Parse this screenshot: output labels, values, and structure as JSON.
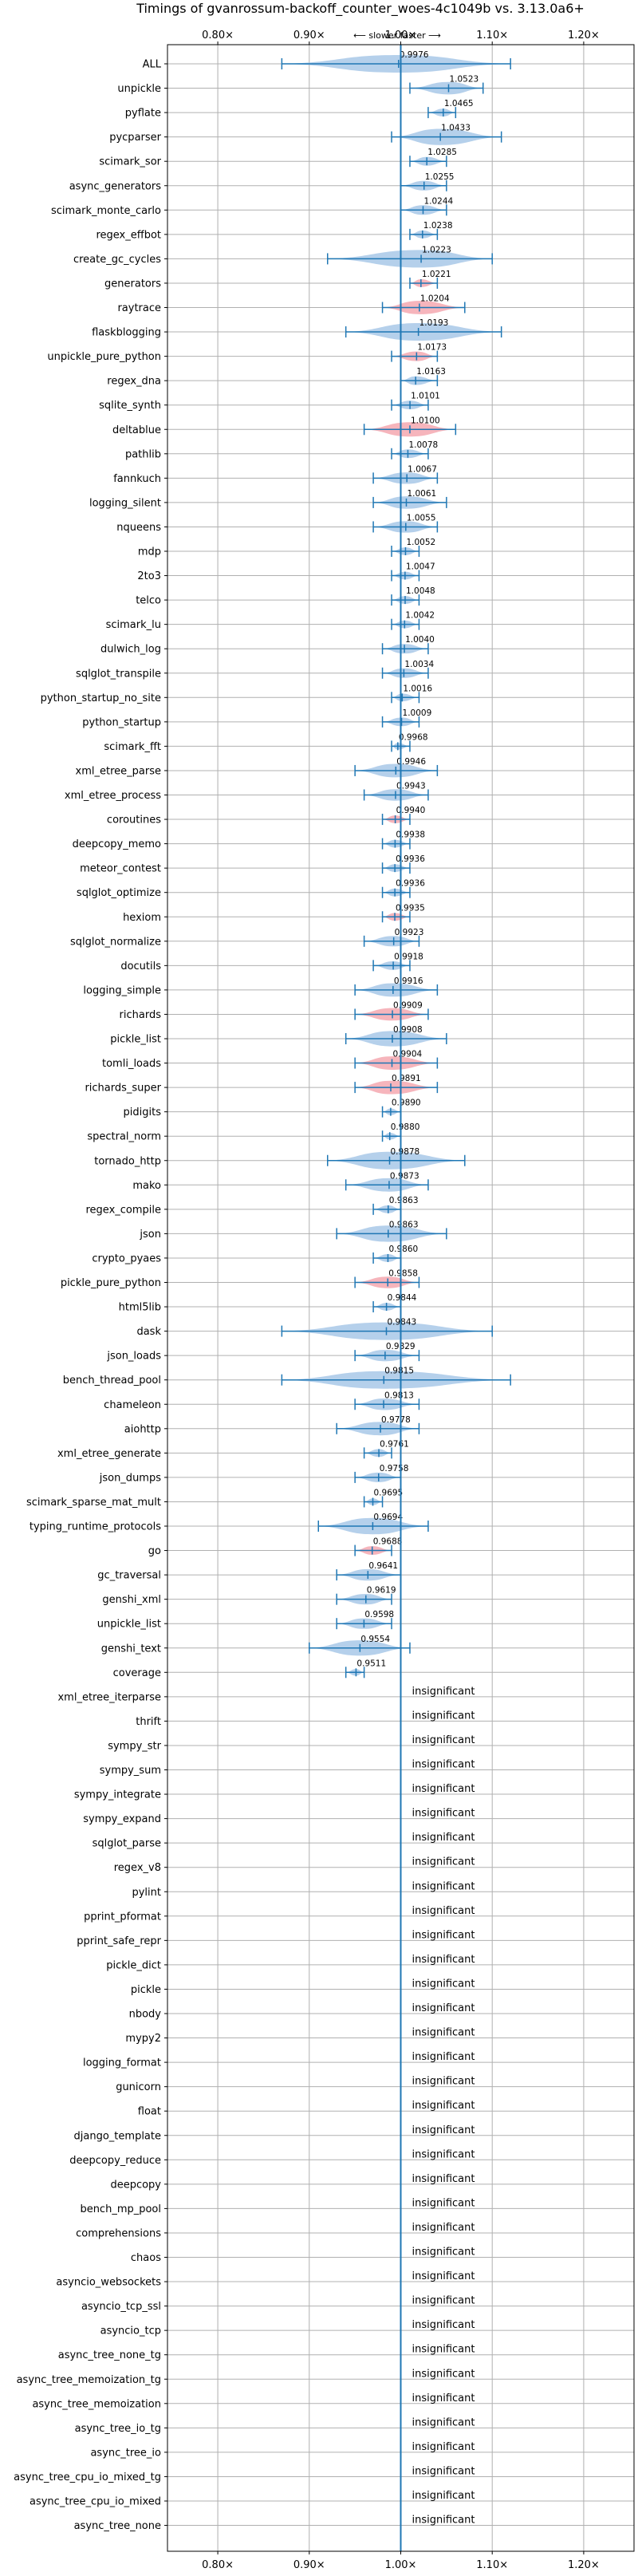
{
  "chart_data": {
    "type": "violin",
    "title": "Timings of gvanrossum-backoff_counter_woes-4c1049b vs. 3.13.0a6+",
    "subtitle": "⟵ slower    faster ⟶",
    "xlim": [
      0.745,
      1.255
    ],
    "x_ticks": [
      0.8,
      0.9,
      1.0,
      1.1,
      1.2
    ],
    "x_tick_labels": [
      "0.80×",
      "0.90×",
      "1.00×",
      "1.10×",
      "1.20×"
    ],
    "grid": true,
    "colors": {
      "faster": "#a8c8e8",
      "slower": "#f4a8b0",
      "line": "#1f77b4"
    },
    "benchmarks": [
      {
        "name": "ALL",
        "label": "0.9976",
        "value": 0.9976,
        "min": 0.87,
        "max": 1.12,
        "color": "blue"
      },
      {
        "name": "unpickle",
        "label": "1.0523",
        "value": 1.0523,
        "min": 1.01,
        "max": 1.09,
        "color": "blue"
      },
      {
        "name": "pyflate",
        "label": "1.0465",
        "value": 1.0465,
        "min": 1.03,
        "max": 1.06,
        "color": "blue"
      },
      {
        "name": "pycparser",
        "label": "1.0433",
        "value": 1.0433,
        "min": 0.99,
        "max": 1.11,
        "color": "blue"
      },
      {
        "name": "scimark_sor",
        "label": "1.0285",
        "value": 1.0285,
        "min": 1.01,
        "max": 1.05,
        "color": "blue"
      },
      {
        "name": "async_generators",
        "label": "1.0255",
        "value": 1.0255,
        "min": 1.0,
        "max": 1.05,
        "color": "blue"
      },
      {
        "name": "scimark_monte_carlo",
        "label": "1.0244",
        "value": 1.0244,
        "min": 1.0,
        "max": 1.05,
        "color": "blue"
      },
      {
        "name": "regex_effbot",
        "label": "1.0238",
        "value": 1.0238,
        "min": 1.01,
        "max": 1.04,
        "color": "blue"
      },
      {
        "name": "create_gc_cycles",
        "label": "1.0223",
        "value": 1.0223,
        "min": 0.92,
        "max": 1.1,
        "color": "blue"
      },
      {
        "name": "generators",
        "label": "1.0221",
        "value": 1.0221,
        "min": 1.01,
        "max": 1.04,
        "color": "red"
      },
      {
        "name": "raytrace",
        "label": "1.0204",
        "value": 1.0204,
        "min": 0.98,
        "max": 1.07,
        "color": "red"
      },
      {
        "name": "flaskblogging",
        "label": "1.0193",
        "value": 1.0193,
        "min": 0.94,
        "max": 1.11,
        "color": "blue"
      },
      {
        "name": "unpickle_pure_python",
        "label": "1.0173",
        "value": 1.0173,
        "min": 0.99,
        "max": 1.04,
        "color": "red"
      },
      {
        "name": "regex_dna",
        "label": "1.0163",
        "value": 1.0163,
        "min": 1.0,
        "max": 1.04,
        "color": "blue"
      },
      {
        "name": "sqlite_synth",
        "label": "1.0101",
        "value": 1.0101,
        "min": 0.99,
        "max": 1.03,
        "color": "blue"
      },
      {
        "name": "deltablue",
        "label": "1.0100",
        "value": 1.01,
        "min": 0.96,
        "max": 1.06,
        "color": "red"
      },
      {
        "name": "pathlib",
        "label": "1.0078",
        "value": 1.0078,
        "min": 0.99,
        "max": 1.03,
        "color": "blue"
      },
      {
        "name": "fannkuch",
        "label": "1.0067",
        "value": 1.0067,
        "min": 0.97,
        "max": 1.04,
        "color": "blue"
      },
      {
        "name": "logging_silent",
        "label": "1.0061",
        "value": 1.0061,
        "min": 0.97,
        "max": 1.05,
        "color": "blue"
      },
      {
        "name": "nqueens",
        "label": "1.0055",
        "value": 1.0055,
        "min": 0.97,
        "max": 1.04,
        "color": "blue"
      },
      {
        "name": "mdp",
        "label": "1.0052",
        "value": 1.0052,
        "min": 0.99,
        "max": 1.02,
        "color": "blue"
      },
      {
        "name": "2to3",
        "label": "1.0047",
        "value": 1.0047,
        "min": 0.99,
        "max": 1.02,
        "color": "blue"
      },
      {
        "name": "telco",
        "label": "1.0048",
        "value": 1.0048,
        "min": 0.99,
        "max": 1.02,
        "color": "blue"
      },
      {
        "name": "scimark_lu",
        "label": "1.0042",
        "value": 1.0042,
        "min": 0.99,
        "max": 1.02,
        "color": "blue"
      },
      {
        "name": "dulwich_log",
        "label": "1.0040",
        "value": 1.004,
        "min": 0.98,
        "max": 1.03,
        "color": "blue"
      },
      {
        "name": "sqlglot_transpile",
        "label": "1.0034",
        "value": 1.0034,
        "min": 0.98,
        "max": 1.03,
        "color": "blue"
      },
      {
        "name": "python_startup_no_site",
        "label": "1.0016",
        "value": 1.0016,
        "min": 0.99,
        "max": 1.02,
        "color": "blue"
      },
      {
        "name": "python_startup",
        "label": "1.0009",
        "value": 1.0009,
        "min": 0.98,
        "max": 1.02,
        "color": "blue"
      },
      {
        "name": "scimark_fft",
        "label": "0.9968",
        "value": 0.9968,
        "min": 0.99,
        "max": 1.01,
        "color": "blue"
      },
      {
        "name": "xml_etree_parse",
        "label": "0.9946",
        "value": 0.9946,
        "min": 0.95,
        "max": 1.04,
        "color": "blue"
      },
      {
        "name": "xml_etree_process",
        "label": "0.9943",
        "value": 0.9943,
        "min": 0.96,
        "max": 1.03,
        "color": "blue"
      },
      {
        "name": "coroutines",
        "label": "0.9940",
        "value": 0.994,
        "min": 0.98,
        "max": 1.01,
        "color": "red"
      },
      {
        "name": "deepcopy_memo",
        "label": "0.9938",
        "value": 0.9938,
        "min": 0.98,
        "max": 1.01,
        "color": "blue"
      },
      {
        "name": "meteor_contest",
        "label": "0.9936",
        "value": 0.9936,
        "min": 0.98,
        "max": 1.01,
        "color": "blue"
      },
      {
        "name": "sqlglot_optimize",
        "label": "0.9936",
        "value": 0.9936,
        "min": 0.98,
        "max": 1.01,
        "color": "blue"
      },
      {
        "name": "hexiom",
        "label": "0.9935",
        "value": 0.9935,
        "min": 0.98,
        "max": 1.01,
        "color": "red"
      },
      {
        "name": "sqlglot_normalize",
        "label": "0.9923",
        "value": 0.9923,
        "min": 0.96,
        "max": 1.02,
        "color": "blue"
      },
      {
        "name": "docutils",
        "label": "0.9918",
        "value": 0.9918,
        "min": 0.97,
        "max": 1.01,
        "color": "blue"
      },
      {
        "name": "logging_simple",
        "label": "0.9916",
        "value": 0.9916,
        "min": 0.95,
        "max": 1.04,
        "color": "blue"
      },
      {
        "name": "richards",
        "label": "0.9909",
        "value": 0.9909,
        "min": 0.95,
        "max": 1.03,
        "color": "red"
      },
      {
        "name": "pickle_list",
        "label": "0.9908",
        "value": 0.9908,
        "min": 0.94,
        "max": 1.05,
        "color": "blue"
      },
      {
        "name": "tomli_loads",
        "label": "0.9904",
        "value": 0.9904,
        "min": 0.95,
        "max": 1.04,
        "color": "red"
      },
      {
        "name": "richards_super",
        "label": "0.9891",
        "value": 0.9891,
        "min": 0.95,
        "max": 1.04,
        "color": "red"
      },
      {
        "name": "pidigits",
        "label": "0.9890",
        "value": 0.989,
        "min": 0.98,
        "max": 1.0,
        "color": "blue"
      },
      {
        "name": "spectral_norm",
        "label": "0.9880",
        "value": 0.988,
        "min": 0.98,
        "max": 1.0,
        "color": "blue"
      },
      {
        "name": "tornado_http",
        "label": "0.9878",
        "value": 0.9878,
        "min": 0.92,
        "max": 1.07,
        "color": "blue"
      },
      {
        "name": "mako",
        "label": "0.9873",
        "value": 0.9873,
        "min": 0.94,
        "max": 1.03,
        "color": "blue"
      },
      {
        "name": "regex_compile",
        "label": "0.9863",
        "value": 0.9863,
        "min": 0.97,
        "max": 1.0,
        "color": "blue"
      },
      {
        "name": "json",
        "label": "0.9863",
        "value": 0.9863,
        "min": 0.93,
        "max": 1.05,
        "color": "blue"
      },
      {
        "name": "crypto_pyaes",
        "label": "0.9860",
        "value": 0.986,
        "min": 0.97,
        "max": 1.0,
        "color": "blue"
      },
      {
        "name": "pickle_pure_python",
        "label": "0.9858",
        "value": 0.9858,
        "min": 0.95,
        "max": 1.02,
        "color": "red"
      },
      {
        "name": "html5lib",
        "label": "0.9844",
        "value": 0.9844,
        "min": 0.97,
        "max": 1.0,
        "color": "blue"
      },
      {
        "name": "dask",
        "label": "0.9843",
        "value": 0.9843,
        "min": 0.87,
        "max": 1.1,
        "color": "blue"
      },
      {
        "name": "json_loads",
        "label": "0.9829",
        "value": 0.9829,
        "min": 0.95,
        "max": 1.02,
        "color": "blue"
      },
      {
        "name": "bench_thread_pool",
        "label": "0.9815",
        "value": 0.9815,
        "min": 0.87,
        "max": 1.12,
        "color": "blue"
      },
      {
        "name": "chameleon",
        "label": "0.9813",
        "value": 0.9813,
        "min": 0.95,
        "max": 1.02,
        "color": "blue"
      },
      {
        "name": "aiohttp",
        "label": "0.9778",
        "value": 0.9778,
        "min": 0.93,
        "max": 1.02,
        "color": "blue"
      },
      {
        "name": "xml_etree_generate",
        "label": "0.9761",
        "value": 0.9761,
        "min": 0.96,
        "max": 0.99,
        "color": "blue"
      },
      {
        "name": "json_dumps",
        "label": "0.9758",
        "value": 0.9758,
        "min": 0.95,
        "max": 1.0,
        "color": "blue"
      },
      {
        "name": "scimark_sparse_mat_mult",
        "label": "0.9695",
        "value": 0.9695,
        "min": 0.96,
        "max": 0.98,
        "color": "blue"
      },
      {
        "name": "typing_runtime_protocols",
        "label": "0.9694",
        "value": 0.9694,
        "min": 0.91,
        "max": 1.03,
        "color": "blue"
      },
      {
        "name": "go",
        "label": "0.9688",
        "value": 0.9688,
        "min": 0.95,
        "max": 0.99,
        "color": "red"
      },
      {
        "name": "gc_traversal",
        "label": "0.9641",
        "value": 0.9641,
        "min": 0.93,
        "max": 1.0,
        "color": "blue"
      },
      {
        "name": "genshi_xml",
        "label": "0.9619",
        "value": 0.9619,
        "min": 0.93,
        "max": 0.99,
        "color": "blue"
      },
      {
        "name": "unpickle_list",
        "label": "0.9598",
        "value": 0.9598,
        "min": 0.93,
        "max": 0.99,
        "color": "blue"
      },
      {
        "name": "genshi_text",
        "label": "0.9554",
        "value": 0.9554,
        "min": 0.9,
        "max": 1.01,
        "color": "blue"
      },
      {
        "name": "coverage",
        "label": "0.9511",
        "value": 0.9511,
        "min": 0.94,
        "max": 0.96,
        "color": "blue"
      },
      {
        "name": "xml_etree_iterparse",
        "label": "insignificant"
      },
      {
        "name": "thrift",
        "label": "insignificant"
      },
      {
        "name": "sympy_str",
        "label": "insignificant"
      },
      {
        "name": "sympy_sum",
        "label": "insignificant"
      },
      {
        "name": "sympy_integrate",
        "label": "insignificant"
      },
      {
        "name": "sympy_expand",
        "label": "insignificant"
      },
      {
        "name": "sqlglot_parse",
        "label": "insignificant"
      },
      {
        "name": "regex_v8",
        "label": "insignificant"
      },
      {
        "name": "pylint",
        "label": "insignificant"
      },
      {
        "name": "pprint_pformat",
        "label": "insignificant"
      },
      {
        "name": "pprint_safe_repr",
        "label": "insignificant"
      },
      {
        "name": "pickle_dict",
        "label": "insignificant"
      },
      {
        "name": "pickle",
        "label": "insignificant"
      },
      {
        "name": "nbody",
        "label": "insignificant"
      },
      {
        "name": "mypy2",
        "label": "insignificant"
      },
      {
        "name": "logging_format",
        "label": "insignificant"
      },
      {
        "name": "gunicorn",
        "label": "insignificant"
      },
      {
        "name": "float",
        "label": "insignificant"
      },
      {
        "name": "django_template",
        "label": "insignificant"
      },
      {
        "name": "deepcopy_reduce",
        "label": "insignificant"
      },
      {
        "name": "deepcopy",
        "label": "insignificant"
      },
      {
        "name": "bench_mp_pool",
        "label": "insignificant"
      },
      {
        "name": "comprehensions",
        "label": "insignificant"
      },
      {
        "name": "chaos",
        "label": "insignificant"
      },
      {
        "name": "asyncio_websockets",
        "label": "insignificant"
      },
      {
        "name": "asyncio_tcp_ssl",
        "label": "insignificant"
      },
      {
        "name": "asyncio_tcp",
        "label": "insignificant"
      },
      {
        "name": "async_tree_none_tg",
        "label": "insignificant"
      },
      {
        "name": "async_tree_memoization_tg",
        "label": "insignificant"
      },
      {
        "name": "async_tree_memoization",
        "label": "insignificant"
      },
      {
        "name": "async_tree_io_tg",
        "label": "insignificant"
      },
      {
        "name": "async_tree_io",
        "label": "insignificant"
      },
      {
        "name": "async_tree_cpu_io_mixed_tg",
        "label": "insignificant"
      },
      {
        "name": "async_tree_cpu_io_mixed",
        "label": "insignificant"
      },
      {
        "name": "async_tree_none",
        "label": "insignificant"
      }
    ]
  }
}
